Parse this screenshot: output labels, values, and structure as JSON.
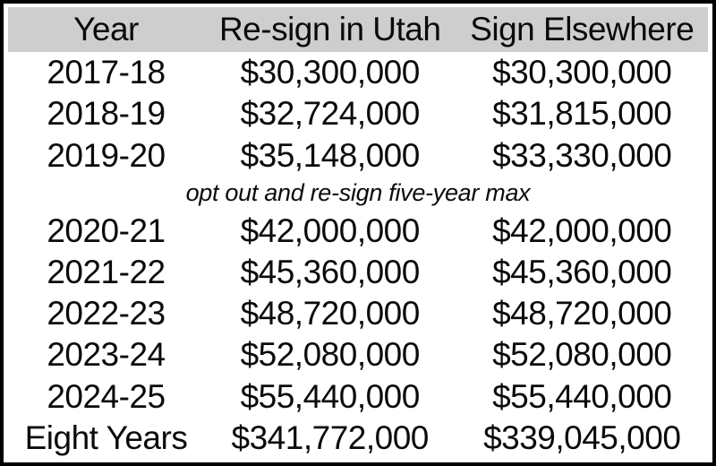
{
  "colors": {
    "header_bg": "#cecece",
    "border": "#000000",
    "text": "#0b0b0b"
  },
  "table": {
    "headers": {
      "year": "Year",
      "resign": "Re-sign in Utah",
      "elsewhere": "Sign Elsewhere"
    },
    "note": "opt out and re-sign five-year max",
    "rows": [
      {
        "year": "2017-18",
        "resign": "$30,300,000",
        "elsewhere": "$30,300,000"
      },
      {
        "year": "2018-19",
        "resign": "$32,724,000",
        "elsewhere": "$31,815,000"
      },
      {
        "year": "2019-20",
        "resign": "$35,148,000",
        "elsewhere": "$33,330,000"
      },
      {
        "year": "2020-21",
        "resign": "$42,000,000",
        "elsewhere": "$42,000,000"
      },
      {
        "year": "2021-22",
        "resign": "$45,360,000",
        "elsewhere": "$45,360,000"
      },
      {
        "year": "2022-23",
        "resign": "$48,720,000",
        "elsewhere": "$48,720,000"
      },
      {
        "year": "2023-24",
        "resign": "$52,080,000",
        "elsewhere": "$52,080,000"
      },
      {
        "year": "2024-25",
        "resign": "$55,440,000",
        "elsewhere": "$55,440,000"
      }
    ],
    "total": {
      "year": "Eight Years",
      "resign": "$341,772,000",
      "elsewhere": "$339,045,000"
    }
  },
  "chart_data": {
    "type": "table",
    "title": "",
    "columns": [
      "Year",
      "Re-sign in Utah",
      "Sign Elsewhere"
    ],
    "categories": [
      "2017-18",
      "2018-19",
      "2019-20",
      "2020-21",
      "2021-22",
      "2022-23",
      "2023-24",
      "2024-25",
      "Eight Years"
    ],
    "series": [
      {
        "name": "Re-sign in Utah",
        "values": [
          30300000,
          32724000,
          35148000,
          42000000,
          45360000,
          48720000,
          52080000,
          55440000,
          341772000
        ]
      },
      {
        "name": "Sign Elsewhere",
        "values": [
          30300000,
          31815000,
          33330000,
          42000000,
          45360000,
          48720000,
          52080000,
          55440000,
          339045000
        ]
      }
    ],
    "annotations": [
      {
        "text": "opt out and re-sign five-year max",
        "position": "between 2019-20 and 2020-21 rows"
      }
    ],
    "layout": {
      "header_background": "#cecece",
      "grid": false
    }
  }
}
